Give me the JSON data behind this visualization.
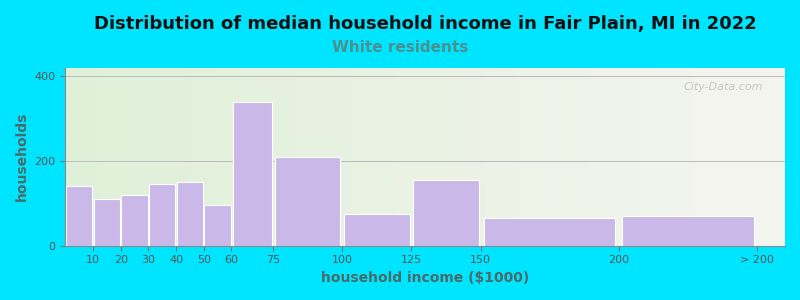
{
  "title": "Distribution of median household income in Fair Plain, MI in 2022",
  "subtitle": "White residents",
  "xlabel": "household income ($1000)",
  "ylabel": "households",
  "bar_lefts": [
    0,
    10,
    20,
    30,
    40,
    50,
    60,
    75,
    100,
    125,
    150,
    200
  ],
  "bar_widths": [
    10,
    10,
    10,
    10,
    10,
    10,
    15,
    25,
    25,
    25,
    50,
    50
  ],
  "bar_values": [
    140,
    110,
    120,
    145,
    150,
    95,
    340,
    210,
    75,
    155,
    65,
    70
  ],
  "xtick_positions": [
    10,
    20,
    30,
    40,
    50,
    60,
    75,
    100,
    125,
    150,
    200,
    250
  ],
  "xtick_labels": [
    "10",
    "20",
    "30",
    "40",
    "50",
    "60",
    "75",
    "100",
    "125",
    "150",
    "200",
    "> 200"
  ],
  "bar_color": "#c9b8e8",
  "bar_edge_color": "#ffffff",
  "ylim": [
    0,
    420
  ],
  "xlim": [
    0,
    260
  ],
  "yticks": [
    0,
    200,
    400
  ],
  "background_outer": "#00e5ff",
  "plot_bg_left_color": "#dff0d8",
  "plot_bg_right_color": "#f5f5f0",
  "title_fontsize": 13,
  "subtitle_color": "#4a9090",
  "subtitle_fontsize": 11,
  "axis_label_fontsize": 10,
  "watermark": "City-Data.com"
}
